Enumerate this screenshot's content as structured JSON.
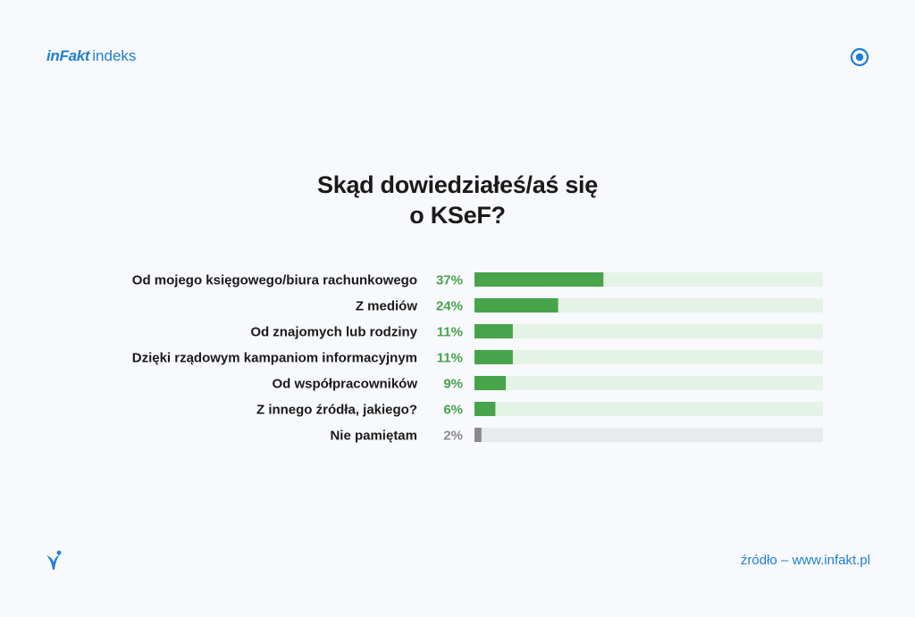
{
  "header": {
    "brand": "inFakt",
    "product": "indeks"
  },
  "colors": {
    "accent": "#1e7ed6",
    "bar_green": "#47a44b",
    "track_green": "#e5f3e6",
    "label_green": "#47a44b",
    "bar_gray": "#8a8a8e",
    "track_gray": "#e8eaec",
    "label_gray": "#8a8a8e"
  },
  "icons": {
    "top_right": "circle-target-icon",
    "bottom_left": "bird-logo-icon"
  },
  "footer": {
    "source": "źródło – www.infakt.pl"
  },
  "chart_data": {
    "type": "bar",
    "orientation": "horizontal",
    "title_lines": [
      "Skąd dowiedziałeś/aś się",
      "o KSeF?"
    ],
    "categories": [
      "Od mojego księgowego/biura rachunkowego",
      "Z mediów",
      "Od znajomych lub rodziny",
      "Dzięki rządowym kampaniom informacyjnym",
      "Od współpracowników",
      "Z innego źródła, jakiego?",
      "Nie pamiętam"
    ],
    "values": [
      37,
      24,
      11,
      11,
      9,
      6,
      2
    ],
    "value_labels": [
      "37%",
      "24%",
      "11%",
      "11%",
      "9%",
      "6%",
      "2%"
    ],
    "highlight": [
      "green",
      "green",
      "green",
      "green",
      "green",
      "green",
      "gray"
    ],
    "xlim": [
      0,
      100
    ],
    "grid": false,
    "legend": "none"
  }
}
